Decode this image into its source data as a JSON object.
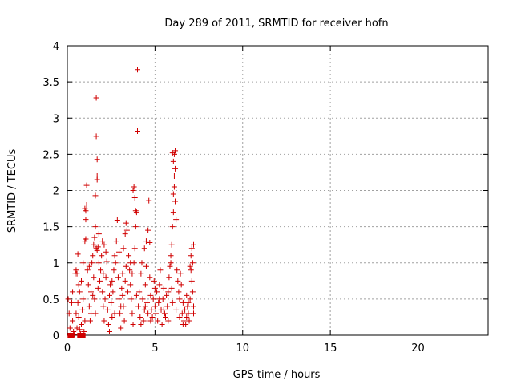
{
  "chart_data": {
    "type": "scatter",
    "title": "Day 289 of 2011, SRMTID for receiver hofn",
    "xlabel": "GPS time / hours",
    "ylabel": "SRMTID / TECUs",
    "xlim": [
      0,
      24
    ],
    "ylim": [
      0,
      4
    ],
    "xticks": [
      "0",
      "5",
      "10",
      "15",
      "20"
    ],
    "yticks": [
      "0",
      "0.5",
      "1",
      "1.5",
      "2",
      "2.5",
      "3",
      "3.5",
      "4"
    ],
    "grid": true,
    "marker": "plus",
    "color": "#d00000",
    "series": [
      {
        "points": [
          [
            0.05,
            0.5
          ],
          [
            0.1,
            0.3
          ],
          [
            0.15,
            0.1
          ],
          [
            0.2,
            0.02
          ],
          [
            0.25,
            0.45
          ],
          [
            0.3,
            0.2
          ],
          [
            0.35,
            0.05
          ],
          [
            0.4,
            0.01
          ],
          [
            0.5,
            0.3
          ],
          [
            0.55,
            0.1
          ],
          [
            0.6,
            0.45
          ],
          [
            0.65,
            0.25
          ],
          [
            0.7,
            0.08
          ],
          [
            0.75,
            0.02
          ],
          [
            0.8,
            0.15
          ],
          [
            0.85,
            0.35
          ],
          [
            0.5,
            0.9
          ],
          [
            0.55,
            0.85
          ],
          [
            0.6,
            1.12
          ],
          [
            0.7,
            0.6
          ],
          [
            0.8,
            0.75
          ],
          [
            0.9,
            0.5
          ],
          [
            0.95,
            0.05
          ],
          [
            1.0,
            0.2
          ],
          [
            1.0,
            1.3
          ],
          [
            1.05,
            1.33
          ],
          [
            1.0,
            1.75
          ],
          [
            1.05,
            1.72
          ],
          [
            1.1,
            1.8
          ],
          [
            1.1,
            2.07
          ],
          [
            1.05,
            1.6
          ],
          [
            1.15,
            0.9
          ],
          [
            1.2,
            0.7
          ],
          [
            1.25,
            0.4
          ],
          [
            1.3,
            0.2
          ],
          [
            1.35,
            0.6
          ],
          [
            1.4,
            1.0
          ],
          [
            1.45,
            1.1
          ],
          [
            1.5,
            1.25
          ],
          [
            1.55,
            1.35
          ],
          [
            1.6,
            1.5
          ],
          [
            1.5,
            0.8
          ],
          [
            1.55,
            0.5
          ],
          [
            1.6,
            0.3
          ],
          [
            1.65,
            1.2
          ],
          [
            1.7,
            1.17
          ],
          [
            1.75,
            1.22
          ],
          [
            1.8,
            1.4
          ],
          [
            1.6,
            1.93
          ],
          [
            1.7,
            2.15
          ],
          [
            1.7,
            2.2
          ],
          [
            1.7,
            2.43
          ],
          [
            1.65,
            2.75
          ],
          [
            1.65,
            3.28
          ],
          [
            1.8,
            1.0
          ],
          [
            1.85,
            0.75
          ],
          [
            1.9,
            0.9
          ],
          [
            1.95,
            1.1
          ],
          [
            2.0,
            0.6
          ],
          [
            2.05,
            0.4
          ],
          [
            2.1,
            0.2
          ],
          [
            2.15,
            0.5
          ],
          [
            2.2,
            0.8
          ],
          [
            2.25,
            1.02
          ],
          [
            2.0,
            1.3
          ],
          [
            2.1,
            1.25
          ],
          [
            2.3,
            0.35
          ],
          [
            2.35,
            0.15
          ],
          [
            2.4,
            0.55
          ],
          [
            2.45,
            0.7
          ],
          [
            2.5,
            0.45
          ],
          [
            2.55,
            0.25
          ],
          [
            2.6,
            0.6
          ],
          [
            2.65,
            0.9
          ],
          [
            2.7,
            1.1
          ],
          [
            2.75,
            1.0
          ],
          [
            2.8,
            1.3
          ],
          [
            2.85,
            1.59
          ],
          [
            2.9,
            0.8
          ],
          [
            2.95,
            0.5
          ],
          [
            3.0,
            0.3
          ],
          [
            3.05,
            0.1
          ],
          [
            3.1,
            0.65
          ],
          [
            3.15,
            0.85
          ],
          [
            3.2,
            0.4
          ],
          [
            3.25,
            0.2
          ],
          [
            3.3,
            0.75
          ],
          [
            3.35,
            0.95
          ],
          [
            3.2,
            1.2
          ],
          [
            3.3,
            1.4
          ],
          [
            3.35,
            1.55
          ],
          [
            3.4,
            1.45
          ],
          [
            3.5,
            1.1
          ],
          [
            3.55,
            0.9
          ],
          [
            3.6,
            0.7
          ],
          [
            3.65,
            0.5
          ],
          [
            3.7,
            0.3
          ],
          [
            3.75,
            0.15
          ],
          [
            3.8,
            1.0
          ],
          [
            3.85,
            1.2
          ],
          [
            3.9,
            1.5
          ],
          [
            3.75,
            2.0
          ],
          [
            3.8,
            2.05
          ],
          [
            3.85,
            1.9
          ],
          [
            3.9,
            1.72
          ],
          [
            3.95,
            1.7
          ],
          [
            4.0,
            2.82
          ],
          [
            4.0,
            3.67
          ],
          [
            4.05,
            0.4
          ],
          [
            4.1,
            0.6
          ],
          [
            4.15,
            0.25
          ],
          [
            4.2,
            0.85
          ],
          [
            4.25,
            1.0
          ],
          [
            4.3,
            0.5
          ],
          [
            4.35,
            0.2
          ],
          [
            4.4,
            0.35
          ],
          [
            4.45,
            0.7
          ],
          [
            4.5,
            0.95
          ],
          [
            4.55,
            0.45
          ],
          [
            4.6,
            0.3
          ],
          [
            4.4,
            1.2
          ],
          [
            4.5,
            1.3
          ],
          [
            4.6,
            1.45
          ],
          [
            4.7,
            1.28
          ],
          [
            4.65,
            1.86
          ],
          [
            4.7,
            0.8
          ],
          [
            4.75,
            0.55
          ],
          [
            4.8,
            0.35
          ],
          [
            4.85,
            0.25
          ],
          [
            4.9,
            0.5
          ],
          [
            4.95,
            0.75
          ],
          [
            5.0,
            0.4
          ],
          [
            5.05,
            0.3
          ],
          [
            5.1,
            0.6
          ],
          [
            5.15,
            0.2
          ],
          [
            5.2,
            0.45
          ],
          [
            5.25,
            0.7
          ],
          [
            5.3,
            0.9
          ],
          [
            5.35,
            0.35
          ],
          [
            5.4,
            0.15
          ],
          [
            5.45,
            0.5
          ],
          [
            5.5,
            0.65
          ],
          [
            5.55,
            0.3
          ],
          [
            5.6,
            0.25
          ],
          [
            5.65,
            0.55
          ],
          [
            5.7,
            0.4
          ],
          [
            5.75,
            0.2
          ],
          [
            5.8,
            0.8
          ],
          [
            5.85,
            0.95
          ],
          [
            5.9,
            1.0
          ],
          [
            5.95,
            0.65
          ],
          [
            6.0,
            0.45
          ],
          [
            5.9,
            1.1
          ],
          [
            5.95,
            1.25
          ],
          [
            6.0,
            1.5
          ],
          [
            6.05,
            1.7
          ],
          [
            6.05,
            1.95
          ],
          [
            6.1,
            2.05
          ],
          [
            6.1,
            2.2
          ],
          [
            6.15,
            2.3
          ],
          [
            6.05,
            2.4
          ],
          [
            6.1,
            2.5
          ],
          [
            6.15,
            2.55
          ],
          [
            6.0,
            2.52
          ],
          [
            6.15,
            1.85
          ],
          [
            6.2,
            1.6
          ],
          [
            6.25,
            0.9
          ],
          [
            6.3,
            0.75
          ],
          [
            6.35,
            0.6
          ],
          [
            6.4,
            0.5
          ],
          [
            6.45,
            0.85
          ],
          [
            6.5,
            0.7
          ],
          [
            6.55,
            0.3
          ],
          [
            6.6,
            0.45
          ],
          [
            6.65,
            0.2
          ],
          [
            6.7,
            0.35
          ],
          [
            6.75,
            0.15
          ],
          [
            6.8,
            0.25
          ],
          [
            6.85,
            0.4
          ],
          [
            6.9,
            0.3
          ],
          [
            6.95,
            0.2
          ],
          [
            7.0,
            0.5
          ],
          [
            7.0,
            0.95
          ],
          [
            7.05,
            1.1
          ],
          [
            7.1,
            1.2
          ],
          [
            7.15,
            1.0
          ],
          [
            7.15,
            0.6
          ],
          [
            7.2,
            0.4
          ],
          [
            7.2,
            0.3
          ],
          [
            7.1,
            0.75
          ],
          [
            7.05,
            0.9
          ],
          [
            7.2,
            1.25
          ],
          [
            0.3,
            0.6
          ],
          [
            0.45,
            0.85
          ],
          [
            0.65,
            0.7
          ],
          [
            0.9,
            1.0
          ],
          [
            1.25,
            0.95
          ],
          [
            1.45,
            0.55
          ],
          [
            1.75,
            0.65
          ],
          [
            2.05,
            0.85
          ],
          [
            2.2,
            1.15
          ],
          [
            2.55,
            0.75
          ],
          [
            2.7,
            0.3
          ],
          [
            2.95,
            1.15
          ],
          [
            3.15,
            0.55
          ],
          [
            3.45,
            0.6
          ],
          [
            3.6,
            1.0
          ],
          [
            3.95,
            0.55
          ],
          [
            4.2,
            0.15
          ],
          [
            4.45,
            0.4
          ],
          [
            4.75,
            0.2
          ],
          [
            5.0,
            0.65
          ],
          [
            5.25,
            0.5
          ],
          [
            5.5,
            0.35
          ],
          [
            5.75,
            0.6
          ],
          [
            6.2,
            0.35
          ],
          [
            6.4,
            0.25
          ],
          [
            6.6,
            0.15
          ],
          [
            6.8,
            0.55
          ],
          [
            6.9,
            0.45
          ],
          [
            1.35,
            0.3
          ],
          [
            2.4,
            0.05
          ],
          [
            3.05,
            0.4
          ],
          [
            3.7,
            0.85
          ]
        ]
      }
    ],
    "square_markers": [
      [
        0.15,
        0.0
      ],
      [
        0.25,
        0.0
      ],
      [
        0.7,
        0.0
      ],
      [
        0.8,
        0.0
      ],
      [
        0.9,
        0.0
      ]
    ]
  }
}
